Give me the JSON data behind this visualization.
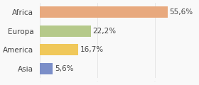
{
  "categories": [
    "Asia",
    "America",
    "Europa",
    "Africa"
  ],
  "values": [
    5.6,
    16.7,
    22.2,
    55.6
  ],
  "labels": [
    "5,6%",
    "16,7%",
    "22,2%",
    "55,6%"
  ],
  "bar_colors": [
    "#7b8ec8",
    "#f0c85a",
    "#b5c98a",
    "#e8a97e"
  ],
  "background_color": "#f9f9f9",
  "xlim": [
    0,
    68
  ],
  "label_fontsize": 7.5,
  "category_fontsize": 7.5
}
